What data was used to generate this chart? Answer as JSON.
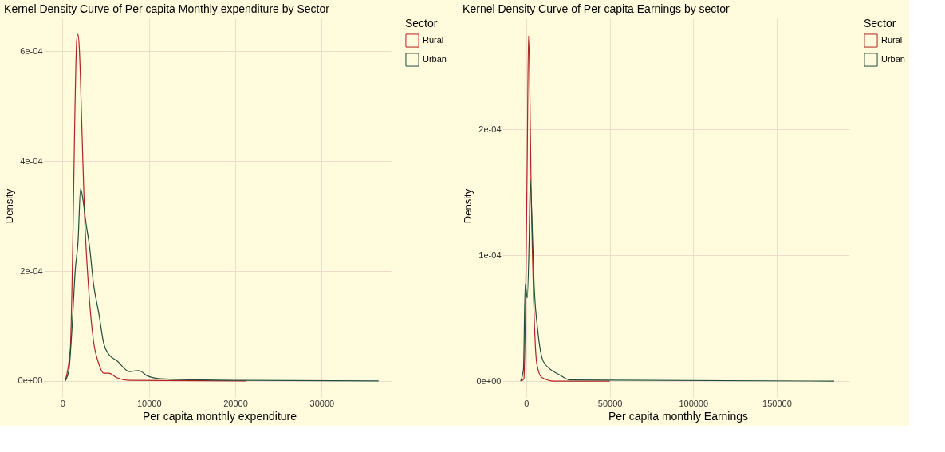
{
  "chart_data": [
    {
      "type": "line",
      "title": "Kernel Density Curve of Per capita Monthly expenditure by Sector",
      "xlabel": "Per capita monthly expenditure",
      "ylabel": "Density",
      "legend_title": "Sector",
      "legend": "right",
      "grid": true,
      "xlim": [
        -1700,
        38000
      ],
      "xticks": [
        0,
        10000,
        20000,
        30000
      ],
      "ylim": [
        -2.2e-05,
        0.00066
      ],
      "yticks": [
        {
          "value": 0,
          "label": "0e+00"
        },
        {
          "value": 0.0002,
          "label": "2e-04"
        },
        {
          "value": 0.0004,
          "label": "4e-04"
        },
        {
          "value": 0.0006,
          "label": "6e-04"
        }
      ],
      "series": [
        {
          "name": "Rural",
          "color": "#b22222",
          "x": [
            300,
            900,
            1190,
            1400,
            1640,
            1790,
            1940,
            2240,
            2540,
            2980,
            3580,
            4180,
            4770,
            5370,
            6270,
            7760,
            21200
          ],
          "values": [
            0,
            5.8e-05,
            0.000254,
            0.00046,
            0.00062,
            0.000631,
            0.000606,
            0.00046,
            0.000306,
            0.000177,
            7.3e-05,
            3.2e-05,
            1.4e-05,
            1.4e-05,
            6e-06,
            1e-06,
            0
          ]
        },
        {
          "name": "Urban",
          "color": "#1f4e3d",
          "x": [
            300,
            740,
            1050,
            1490,
            1790,
            2090,
            2390,
            2690,
            3130,
            3580,
            4180,
            4770,
            5370,
            6270,
            7760,
            8800,
            9850,
            11340,
            15220,
            21190,
            36600
          ],
          "values": [
            0,
            2e-05,
            8.4e-05,
            0.000205,
            0.000252,
            0.00035,
            0.000327,
            0.00029,
            0.000244,
            0.000177,
            0.000125,
            6.8e-05,
            4.8e-05,
            3.7e-05,
            1.7e-05,
            1.9e-05,
            9e-06,
            4e-06,
            2e-06,
            1e-06,
            0
          ]
        }
      ]
    },
    {
      "type": "line",
      "title": "Kernel Density Curve of Per capita Earnings by sector",
      "xlabel": "Per capita monthly Earnings",
      "ylabel": "Density",
      "legend_title": "Sector",
      "legend": "right",
      "grid": true,
      "xlim": [
        -11900,
        193500
      ],
      "xticks": [
        0,
        50000,
        100000,
        150000
      ],
      "ylim": [
        -9.4e-06,
        0.000288
      ],
      "yticks": [
        {
          "value": 0,
          "label": "0e+00"
        },
        {
          "value": 0.0001,
          "label": "1e-04"
        },
        {
          "value": 0.0002,
          "label": "2e-04"
        }
      ],
      "series": [
        {
          "name": "Rural",
          "color": "#b22222",
          "x": [
            -2900,
            -1400,
            -150,
            600,
            1380,
            2000,
            2900,
            4400,
            6300,
            9300,
            17000,
            50000
          ],
          "values": [
            0,
            2e-06,
            8.8e-05,
            0.000178,
            0.000274,
            0.000245,
            0.000155,
            6.6e-05,
            1.4e-05,
            3e-06,
            0,
            0
          ]
        },
        {
          "name": "Urban",
          "color": "#1f4e3d",
          "x": [
            -3400,
            -1700,
            -600,
            600,
            1700,
            2400,
            3200,
            4700,
            7000,
            10100,
            13900,
            20000,
            26100,
            184400
          ],
          "values": [
            0,
            9e-06,
            7.7e-05,
            6.6e-05,
            0.00011,
            0.00016,
            0.000137,
            7.7e-05,
            3.9e-05,
            1.6e-05,
            1e-05,
            5e-06,
            1e-06,
            0
          ]
        }
      ]
    }
  ]
}
